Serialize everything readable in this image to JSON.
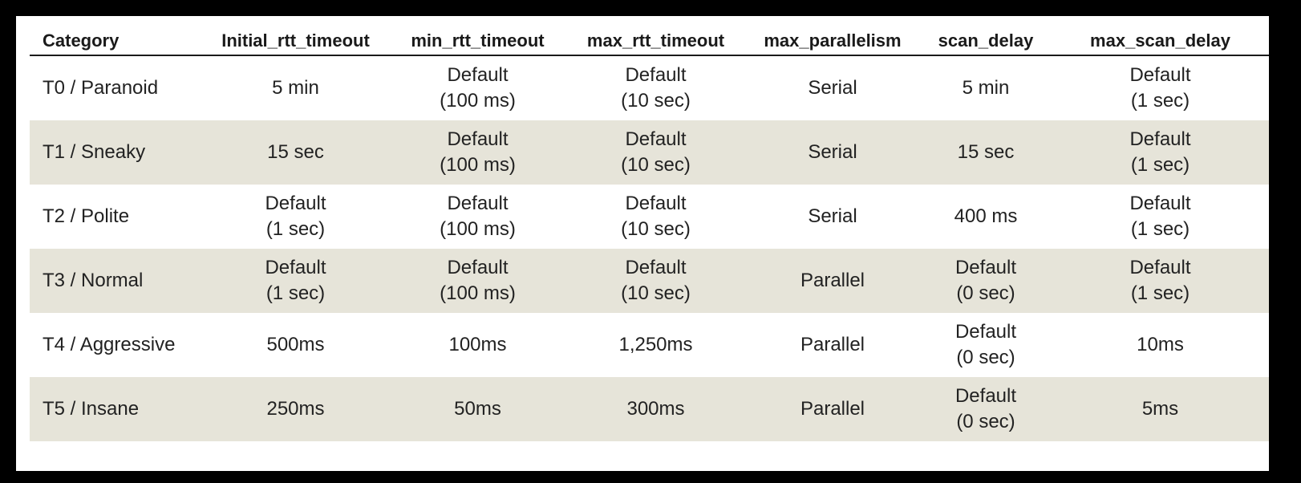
{
  "table": {
    "headers": [
      "Category",
      "Initial_rtt_timeout",
      "min_rtt_timeout",
      "max_rtt_timeout",
      "max_parallelism",
      "scan_delay",
      "max_scan_delay"
    ],
    "rows": [
      [
        "T0 / Paranoid",
        "5 min",
        "Default\n(100 ms)",
        "Default\n(10 sec)",
        "Serial",
        "5 min",
        "Default\n(1 sec)"
      ],
      [
        "T1 / Sneaky",
        "15 sec",
        "Default\n(100 ms)",
        "Default\n(10 sec)",
        "Serial",
        "15 sec",
        "Default\n(1 sec)"
      ],
      [
        "T2 / Polite",
        "Default\n(1 sec)",
        "Default\n(100 ms)",
        "Default\n(10 sec)",
        "Serial",
        "400 ms",
        "Default\n(1 sec)"
      ],
      [
        "T3 / Normal",
        "Default\n(1 sec)",
        "Default\n(100 ms)",
        "Default\n(10 sec)",
        "Parallel",
        "Default\n(0 sec)",
        "Default\n(1 sec)"
      ],
      [
        "T4 / Aggressive",
        "500ms",
        "100ms",
        "1,250ms",
        "Parallel",
        "Default\n(0 sec)",
        "10ms"
      ],
      [
        "T5 / Insane",
        "250ms",
        "50ms",
        "300ms",
        "Parallel",
        "Default\n(0 sec)",
        "5ms"
      ]
    ],
    "colors": {
      "page_background": "#000000",
      "panel_background": "#ffffff",
      "row_shade": "#e6e4d9",
      "text": "#222222"
    }
  }
}
